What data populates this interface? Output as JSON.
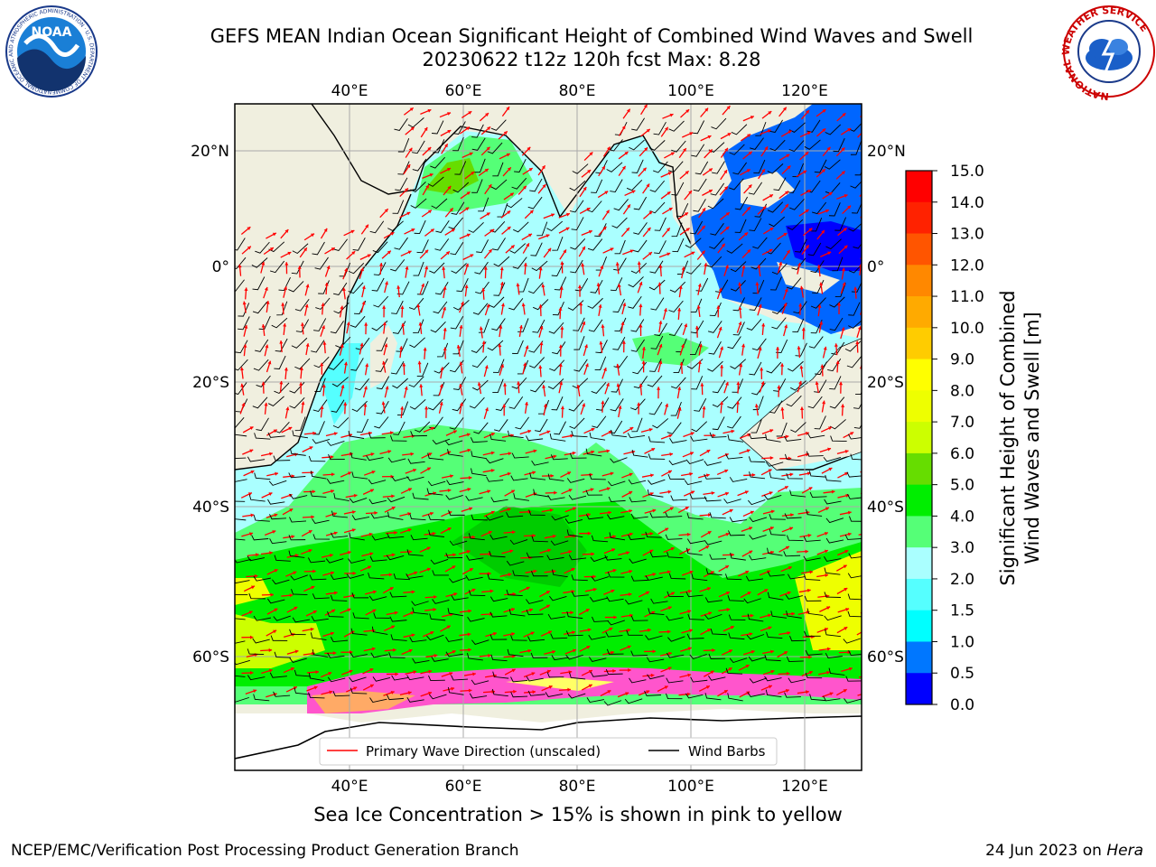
{
  "header": {
    "title_line1": "GEFS MEAN Indian Ocean Significant Height of Combined Wind Waves and Swell",
    "title_line2": "20230622 t12z 120h fcst   Max: 8.28"
  },
  "logos": {
    "left": {
      "name": "noaa-logo",
      "text": "NOAA",
      "ring_text": "NATIONAL OCEANIC AND ATMOSPHERIC ADMINISTRATION · U.S. DEPARTMENT OF COMMERCE"
    },
    "right": {
      "name": "nws-logo",
      "ring_text": "NATIONAL WEATHER SERVICE"
    }
  },
  "map": {
    "lon_ticks": [
      "40°E",
      "60°E",
      "80°E",
      "100°E",
      "120°E"
    ],
    "lat_ticks": [
      "20°N",
      "0°",
      "20°S",
      "40°S",
      "60°S"
    ],
    "land_color": "#efefdf",
    "ice_note_colors": [
      "#ff55cc",
      "#ffaa66",
      "#ffff66"
    ]
  },
  "legend": {
    "wave_label": "Primary Wave Direction (unscaled)",
    "wind_label": "Wind Barbs",
    "wave_color": "#ff0000",
    "wind_color": "#000000"
  },
  "colorbar": {
    "label_line1": "Significant Height of Combined",
    "label_line2": "Wind Waves and Swell [m]",
    "ticks": [
      "0.0",
      "0.5",
      "1.0",
      "1.5",
      "2.0",
      "3.0",
      "4.0",
      "5.0",
      "6.0",
      "7.0",
      "8.0",
      "9.0",
      "10.0",
      "11.0",
      "12.0",
      "13.0",
      "14.0",
      "15.0"
    ],
    "colors": [
      "#0000ff",
      "#0077ff",
      "#00ffff",
      "#55ffff",
      "#aaffff",
      "#55ff77",
      "#00ee00",
      "#66dd00",
      "#ccff00",
      "#eeff00",
      "#ffff00",
      "#ffcc00",
      "#ffaa00",
      "#ff8800",
      "#ff5500",
      "#ff2200",
      "#ff0000"
    ]
  },
  "captions": {
    "sea_ice": "Sea Ice Concentration > 15% is shown in pink to yellow",
    "branch": "NCEP/EMC/Verification Post Processing Product Generation Branch",
    "date": "24 Jun 2023 on ",
    "host": "Hera"
  }
}
